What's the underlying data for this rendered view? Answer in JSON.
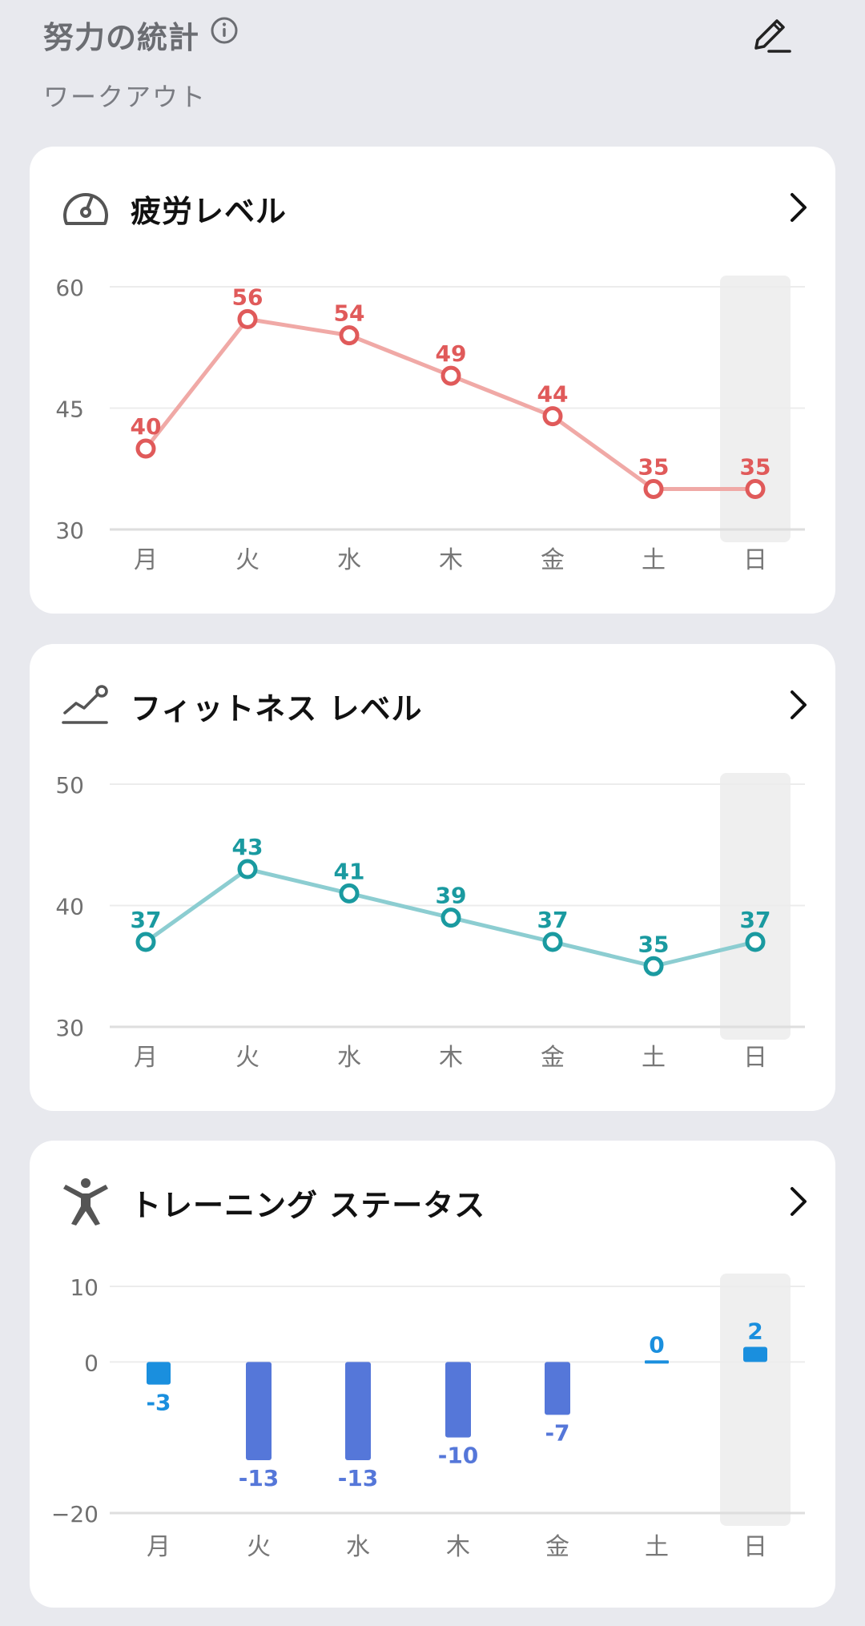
{
  "header": {
    "title": "努力の統計",
    "subtitle": "ワークアウト"
  },
  "weekdays": [
    "月",
    "火",
    "水",
    "木",
    "金",
    "土",
    "日"
  ],
  "colors": {
    "fatigue": "#e05a5a",
    "fatigue_line": "#f0a9a6",
    "fitness": "#1a9aa0",
    "fitness_line": "#8ccdd1",
    "training_pos": "#1a8fde",
    "training_neg": "#5577d9",
    "highlight": "#efefef"
  },
  "cards": {
    "fatigue": {
      "title": "疲労レベル"
    },
    "fitness": {
      "title": "フィットネス レベル"
    },
    "training": {
      "title": "トレーニング ステータス"
    }
  },
  "chart_data": [
    {
      "type": "line",
      "categories": [
        "月",
        "火",
        "水",
        "木",
        "金",
        "土",
        "日"
      ],
      "series": [
        {
          "values": [
            40,
            56,
            54,
            49,
            44,
            35,
            35
          ]
        }
      ],
      "yticks": [
        30,
        45,
        60
      ],
      "ylim": [
        30,
        60
      ],
      "highlight_category": "日",
      "grid": true
    },
    {
      "type": "line",
      "categories": [
        "月",
        "火",
        "水",
        "木",
        "金",
        "土",
        "日"
      ],
      "series": [
        {
          "values": [
            37,
            43,
            41,
            39,
            37,
            35,
            37
          ]
        }
      ],
      "yticks": [
        30,
        40,
        50
      ],
      "ylim": [
        30,
        50
      ],
      "highlight_category": "日",
      "grid": true
    },
    {
      "type": "bar",
      "categories": [
        "月",
        "火",
        "水",
        "木",
        "金",
        "土",
        "日"
      ],
      "values": [
        -3,
        -13,
        -13,
        -10,
        -7,
        0,
        2
      ],
      "yticks": [
        -20,
        0,
        10
      ],
      "ytick_labels": [
        "−20",
        "0",
        "10"
      ],
      "ylim": [
        -20,
        10
      ],
      "highlight_category": "日",
      "grid": true
    }
  ]
}
